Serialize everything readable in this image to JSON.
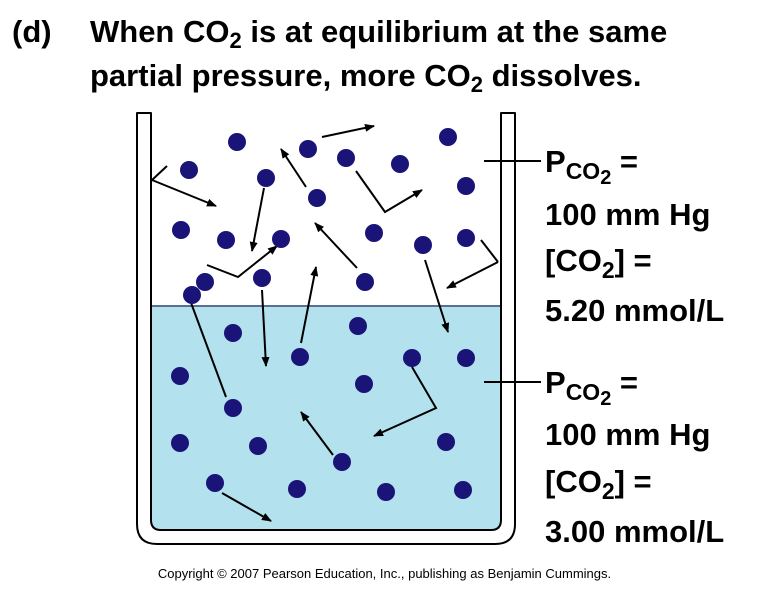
{
  "title": {
    "label": "(d)",
    "line1_pre": "When CO",
    "line1_sub": "2",
    "line1_post": " is at equilibrium  at the same",
    "line2_pre": "partial pressure, more CO",
    "line2_sub": "2",
    "line2_post": " dissolves."
  },
  "gas_phase": {
    "p_letter": "P",
    "p_sub": "CO",
    "p_sub2": "2",
    "p_eq": " =",
    "pressure": "100 mm Hg",
    "conc_pre": "[CO",
    "conc_sub": "2",
    "conc_post": "] =",
    "concentration": "5.20 mmol/L"
  },
  "liquid_phase": {
    "p_letter": "P",
    "p_sub": "CO",
    "p_sub2": "2",
    "p_eq": " =",
    "pressure": "100 mm Hg",
    "conc_pre": "[CO",
    "conc_sub": "2",
    "conc_post": "] =",
    "concentration": "3.00 mmol/L"
  },
  "copyright": "Copyright © 2007 Pearson Education, Inc., publishing as Benjamin Cummings.",
  "colors": {
    "liquid": "#b3e1ee",
    "molecule": "#1a1478",
    "beaker": "#000000"
  }
}
